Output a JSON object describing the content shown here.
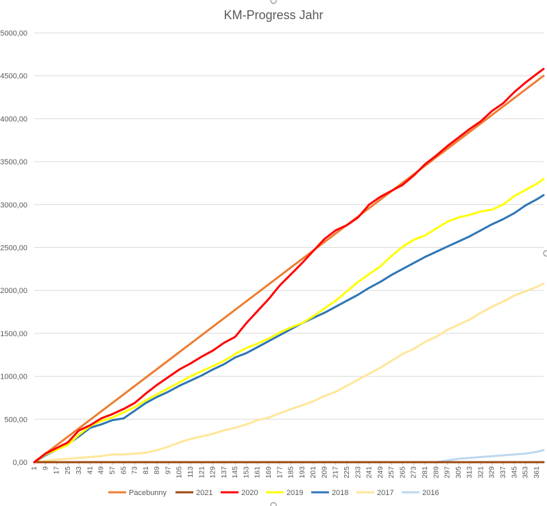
{
  "chart_data": {
    "type": "line",
    "title": "KM-Progress Jahr",
    "xlabel": "",
    "ylabel": "",
    "ylim": [
      0,
      5000
    ],
    "y_ticks": [
      "0,00",
      "500,00",
      "1000,00",
      "1500,00",
      "2000,00",
      "2500,00",
      "3000,00",
      "3500,00",
      "4000,00",
      "4500,00",
      "5000,00"
    ],
    "xlim": [
      1,
      366
    ],
    "x_ticks": [
      "1",
      "9",
      "17",
      "25",
      "33",
      "41",
      "49",
      "57",
      "65",
      "73",
      "81",
      "89",
      "97",
      "105",
      "113",
      "121",
      "129",
      "137",
      "145",
      "153",
      "161",
      "169",
      "177",
      "185",
      "193",
      "201",
      "209",
      "217",
      "225",
      "233",
      "241",
      "249",
      "257",
      "265",
      "273",
      "281",
      "289",
      "297",
      "305",
      "313",
      "321",
      "329",
      "337",
      "345",
      "353",
      "361"
    ],
    "grid": true,
    "legend_position": "bottom",
    "series": [
      {
        "name": "Pacebunny",
        "color": "#ed7d31",
        "x": [
          1,
          366
        ],
        "values": [
          0,
          4500
        ]
      },
      {
        "name": "2021",
        "color": "#9e480e",
        "x": [
          1,
          366
        ],
        "values": [
          0,
          0
        ]
      },
      {
        "name": "2020",
        "color": "#ff0000",
        "x": [
          1,
          9,
          25,
          33,
          41,
          49,
          57,
          65,
          73,
          81,
          89,
          97,
          105,
          113,
          121,
          129,
          137,
          145,
          153,
          161,
          169,
          177,
          185,
          193,
          201,
          209,
          217,
          225,
          233,
          241,
          249,
          257,
          265,
          273,
          281,
          289,
          297,
          305,
          313,
          321,
          329,
          337,
          345,
          353,
          361,
          366
        ],
        "values": [
          0,
          100,
          230,
          370,
          430,
          510,
          560,
          620,
          690,
          800,
          900,
          990,
          1080,
          1150,
          1230,
          1300,
          1390,
          1460,
          1620,
          1760,
          1900,
          2060,
          2190,
          2320,
          2460,
          2600,
          2700,
          2760,
          2850,
          3000,
          3090,
          3160,
          3230,
          3340,
          3470,
          3570,
          3680,
          3780,
          3880,
          3970,
          4090,
          4180,
          4310,
          4420,
          4520,
          4580
        ]
      },
      {
        "name": "2019",
        "color": "#ffff00",
        "x": [
          1,
          9,
          25,
          33,
          41,
          49,
          57,
          65,
          73,
          81,
          89,
          97,
          105,
          113,
          121,
          129,
          137,
          145,
          153,
          161,
          169,
          177,
          185,
          193,
          201,
          209,
          217,
          225,
          233,
          241,
          249,
          257,
          265,
          273,
          281,
          289,
          297,
          305,
          313,
          321,
          329,
          337,
          345,
          353,
          361,
          366
        ],
        "values": [
          0,
          90,
          200,
          320,
          420,
          480,
          520,
          580,
          640,
          720,
          790,
          860,
          930,
          1000,
          1060,
          1120,
          1180,
          1260,
          1330,
          1380,
          1440,
          1510,
          1570,
          1620,
          1700,
          1790,
          1880,
          1990,
          2100,
          2190,
          2280,
          2400,
          2510,
          2590,
          2640,
          2720,
          2800,
          2850,
          2880,
          2920,
          2940,
          3000,
          3100,
          3170,
          3240,
          3300
        ]
      },
      {
        "name": "2018",
        "color": "#2e75b6",
        "x": [
          1,
          9,
          25,
          33,
          41,
          49,
          57,
          65,
          73,
          81,
          89,
          97,
          105,
          113,
          121,
          129,
          137,
          145,
          153,
          161,
          169,
          177,
          185,
          193,
          201,
          209,
          217,
          225,
          233,
          241,
          249,
          257,
          265,
          273,
          281,
          289,
          297,
          305,
          313,
          321,
          329,
          337,
          345,
          353,
          361,
          366
        ],
        "values": [
          0,
          80,
          210,
          300,
          400,
          440,
          490,
          510,
          600,
          690,
          760,
          820,
          890,
          950,
          1010,
          1080,
          1140,
          1220,
          1270,
          1340,
          1410,
          1480,
          1550,
          1620,
          1680,
          1740,
          1810,
          1880,
          1950,
          2030,
          2100,
          2180,
          2250,
          2320,
          2390,
          2450,
          2510,
          2570,
          2630,
          2700,
          2770,
          2830,
          2900,
          2990,
          3060,
          3110
        ]
      },
      {
        "name": "2017",
        "color": "#ffe699",
        "x": [
          1,
          17,
          33,
          49,
          57,
          65,
          73,
          81,
          89,
          97,
          105,
          113,
          121,
          129,
          137,
          145,
          153,
          161,
          169,
          177,
          185,
          193,
          201,
          209,
          217,
          225,
          233,
          241,
          249,
          257,
          265,
          273,
          281,
          289,
          297,
          305,
          313,
          321,
          329,
          337,
          345,
          353,
          361,
          366
        ],
        "values": [
          0,
          30,
          50,
          70,
          90,
          90,
          100,
          110,
          140,
          180,
          230,
          270,
          300,
          330,
          370,
          400,
          440,
          490,
          520,
          570,
          620,
          660,
          710,
          770,
          820,
          890,
          960,
          1030,
          1100,
          1180,
          1260,
          1320,
          1400,
          1460,
          1540,
          1600,
          1660,
          1740,
          1810,
          1870,
          1940,
          1990,
          2040,
          2080
        ]
      },
      {
        "name": "2016",
        "color": "#bdd7ee",
        "x": [
          1,
          289,
          297,
          305,
          313,
          321,
          329,
          337,
          345,
          353,
          361,
          366
        ],
        "values": [
          0,
          0,
          20,
          40,
          50,
          60,
          70,
          80,
          90,
          100,
          120,
          140
        ]
      }
    ]
  }
}
